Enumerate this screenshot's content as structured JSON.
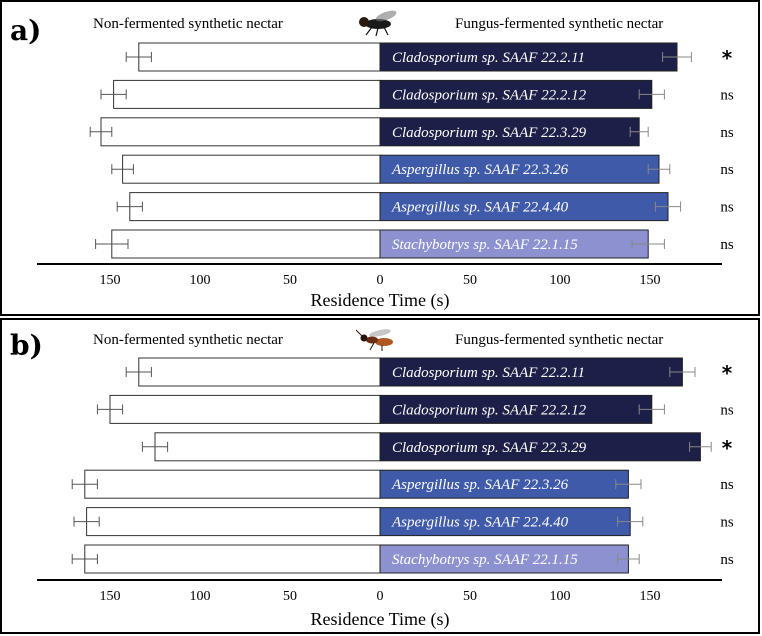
{
  "chart_data": [
    {
      "type": "bar",
      "panel_label": "a)",
      "left_header": "Non-fermented synthetic nectar",
      "right_header": "Fungus-fermented synthetic nectar",
      "icon": "fly-insect-icon",
      "xlabel": "Residence Time (s)",
      "xticks_left": [
        "150",
        "100",
        "50",
        "0"
      ],
      "xticks_right": [
        "50",
        "100",
        "150"
      ],
      "xlim": [
        0,
        190
      ],
      "categories": [
        "Cladosporium sp. SAAF 22.2.11",
        "Cladosporium sp. SAAF 22.2.12",
        "Cladosporium sp. SAAF 22.3.29",
        "Aspergillus sp. SAAF 22.3.26",
        "Aspergillus sp. SAAF 22.4.40",
        "Stachybotrys sp. SAAF 22.1.15"
      ],
      "series": [
        {
          "name": "Non-fermented synthetic nectar",
          "values": [
            134,
            148,
            155,
            143,
            139,
            149
          ],
          "errors": [
            7,
            7,
            6,
            6,
            7,
            9
          ],
          "color": "#ffffff"
        },
        {
          "name": "Fungus-fermented synthetic nectar",
          "values": [
            165,
            151,
            144,
            155,
            160,
            149
          ],
          "errors": [
            8,
            7,
            5,
            6,
            7,
            9
          ],
          "colors": [
            "#1c1f47",
            "#1c1f47",
            "#1c1f47",
            "#3e5aa8",
            "#3e5aa8",
            "#8d91d0"
          ]
        }
      ],
      "significance": [
        "*",
        "ns",
        "ns",
        "ns",
        "ns",
        "ns"
      ]
    },
    {
      "type": "bar",
      "panel_label": "b)",
      "left_header": "Non-fermented synthetic nectar",
      "right_header": "Fungus-fermented synthetic nectar",
      "icon": "wasp-insect-icon",
      "xlabel": "Residence Time (s)",
      "xticks_left": [
        "150",
        "100",
        "50",
        "0"
      ],
      "xticks_right": [
        "50",
        "100",
        "150"
      ],
      "xlim": [
        0,
        190
      ],
      "categories": [
        "Cladosporium sp. SAAF 22.2.11",
        "Cladosporium sp. SAAF 22.2.12",
        "Cladosporium sp. SAAF 22.3.29",
        "Aspergillus sp. SAAF 22.3.26",
        "Aspergillus sp. SAAF 22.4.40",
        "Stachybotrys sp. SAAF 22.1.15"
      ],
      "series": [
        {
          "name": "Non-fermented synthetic nectar",
          "values": [
            134,
            150,
            125,
            164,
            163,
            164
          ],
          "errors": [
            7,
            7,
            7,
            7,
            7,
            7
          ],
          "color": "#ffffff"
        },
        {
          "name": "Fungus-fermented synthetic nectar",
          "values": [
            168,
            151,
            178,
            138,
            139,
            138
          ],
          "errors": [
            7,
            7,
            6,
            7,
            7,
            6
          ],
          "colors": [
            "#1c1f47",
            "#1c1f47",
            "#1c1f47",
            "#3e5aa8",
            "#3e5aa8",
            "#8d91d0"
          ]
        }
      ],
      "significance": [
        "*",
        "ns",
        "*",
        "ns",
        "ns",
        "ns"
      ]
    }
  ]
}
